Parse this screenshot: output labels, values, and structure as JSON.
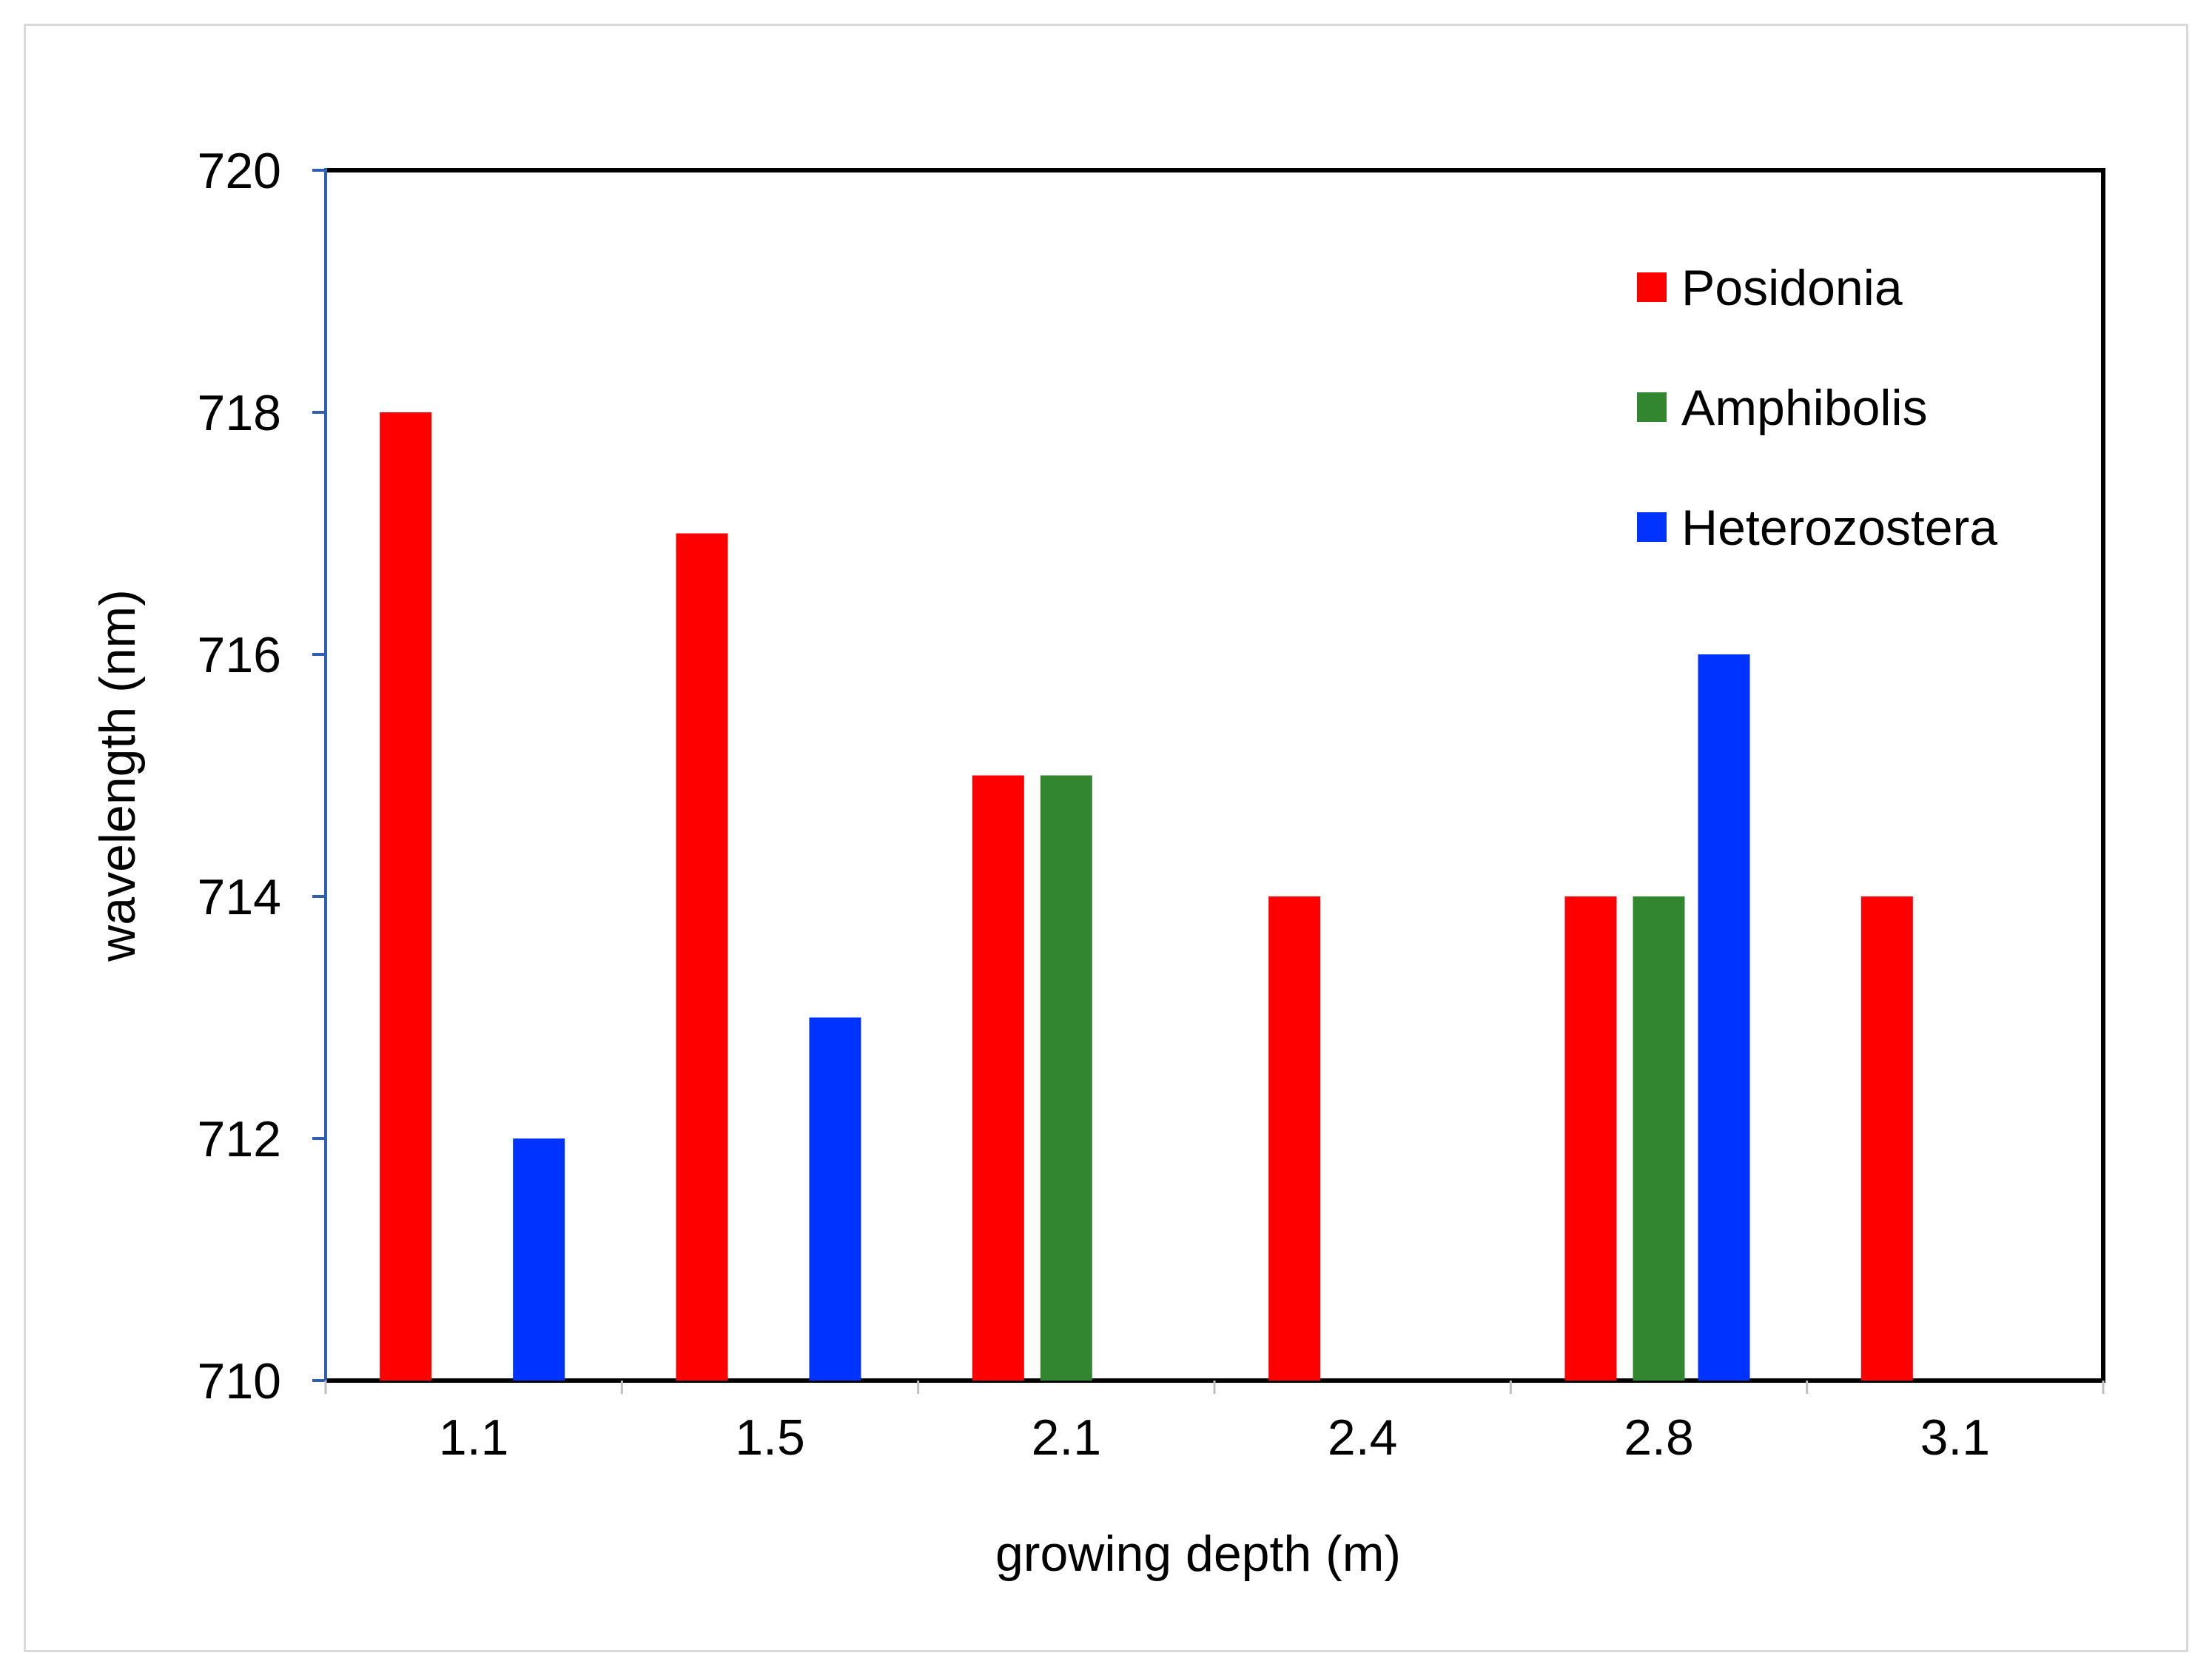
{
  "chart_data": {
    "type": "bar",
    "title": "",
    "xlabel": "growing depth (m)",
    "ylabel": "wavelength (nm)",
    "categories": [
      "1.1",
      "1.5",
      "2.1",
      "2.4",
      "2.8",
      "3.1"
    ],
    "series": [
      {
        "name": "Posidonia",
        "color": "#ff0000",
        "values": [
          718,
          717,
          715,
          714,
          714,
          714
        ]
      },
      {
        "name": "Amphibolis",
        "color": "#31862f",
        "values": [
          null,
          null,
          715,
          null,
          714,
          null
        ]
      },
      {
        "name": "Heterozostera",
        "color": "#0033ff",
        "values": [
          712,
          713,
          null,
          null,
          716,
          null
        ]
      }
    ],
    "ylim": [
      710,
      720
    ],
    "yticks": [
      "710",
      "712",
      "714",
      "716",
      "718",
      "720"
    ],
    "grid": false,
    "legend_position": "top-right"
  }
}
